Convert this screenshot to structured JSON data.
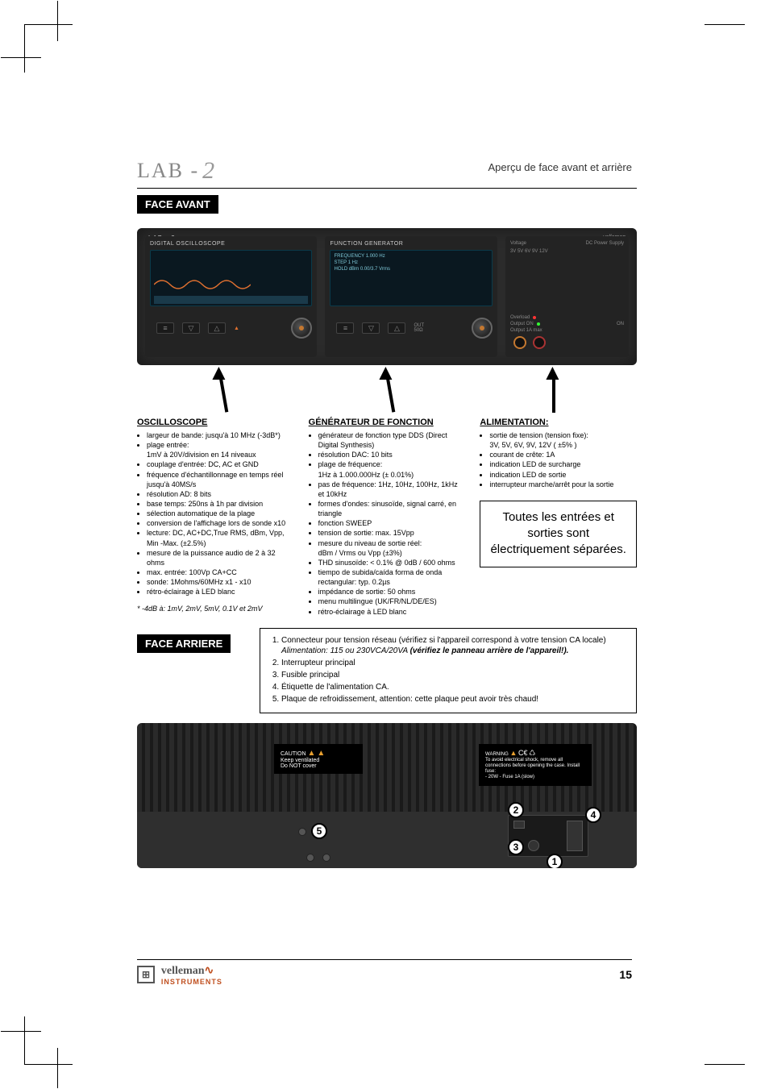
{
  "header_right": "Aperçu de face avant et arrière",
  "logo_text": "LAB - ",
  "logo_two": "2",
  "badge_front": "FACE AVANT",
  "badge_rear": "FACE ARRIERE",
  "device": {
    "model": "LAB - 2",
    "brand": "velleman",
    "osc_label": "DIGITAL OSCILLOSCOPE",
    "fg_label": "FUNCTION GENERATOR",
    "fg_screen": {
      "l1": "FREQUENCY    1.000 Hz",
      "l2": "STEP              1 Hz",
      "l3": "HOLD dBm    0.00/3.7 Vrms"
    },
    "power": {
      "voltage_label": "Voltage",
      "dc_label": "DC Power Supply",
      "overload": "Overload",
      "output_on": "Output ON",
      "output_jack": "Output 1A max"
    }
  },
  "osc": {
    "title": "OSCILLOSCOPE",
    "items": [
      "largeur de bande: jusqu'à 10 MHz (-3dB*)",
      "plage entrée:\n1mV à 20V/division en 14 niveaux",
      "couplage d'entrée: DC, AC et GND",
      "fréquence d'échantillonnage en temps réel jusqu'à 40MS/s",
      "résolution AD: 8 bits",
      "base temps: 250ns à 1h par division",
      "sélection automatique de la plage",
      "conversion de l'affichage lors de sonde x10",
      "lecture: DC, AC+DC,True RMS, dBm, Vpp, Min -Max. (±2.5%)",
      "mesure de la puissance audio de 2 à 32 ohms",
      "max. entrée: 100Vp CA+CC",
      "sonde: 1Mohms/60MHz x1 - x10",
      "rétro-éclairage à LED blanc"
    ],
    "footnote": "* -4dB à: 1mV, 2mV, 5mV, 0.1V et 2mV"
  },
  "fg": {
    "title": "GÉNÉRATEUR DE FONCTION",
    "items": [
      "générateur de fonction type DDS (Direct Digital Synthesis)",
      "résolution DAC: 10 bits",
      "plage de fréquence:\n1Hz à 1.000.000Hz (± 0.01%)",
      "pas de fréquence: 1Hz, 10Hz, 100Hz, 1kHz et 10kHz",
      "formes d'ondes: sinusoïde, signal carré, en triangle",
      "fonction SWEEP",
      "tension de sortie: max. 15Vpp",
      "mesure du niveau de sortie réel:\ndBm / Vrms ou Vpp (±3%)",
      "THD sinusoïde: < 0.1% @ 0dB / 600 ohms",
      "tiempo de subida/caída forma de onda rectangular: typ. 0.2µs",
      "impédance de sortie: 50 ohms",
      "menu multilingue (UK/FR/NL/DE/ES)",
      "rétro-éclairage à LED blanc"
    ]
  },
  "power": {
    "title": "ALIMENTATION:",
    "items": [
      "sortie de tension (tension fixe):\n3V, 5V, 6V, 9V, 12V ( ±5% )",
      "courant de crête: 1A",
      "indication LED de surcharge",
      "indication LED de sortie",
      "interrupteur marche/arrêt pour la sortie"
    ]
  },
  "callout": "Toutes les entrées et sorties sont électriquement séparées.",
  "rear": {
    "items": [
      {
        "n": "1",
        "text": "Connecteur pour tension réseau (vérifiez si l'appareil correspond à votre tension CA locale)",
        "sub": "Alimentation: 115 ou 230VCA/20VA ",
        "sub_bold": "(vérifiez le panneau arrière de l'appareil!)."
      },
      {
        "n": "2",
        "text": "Interrupteur principal"
      },
      {
        "n": "3",
        "text": "Fusible principal"
      },
      {
        "n": "4",
        "text": "Étiquette de l'alimentation CA."
      },
      {
        "n": "5",
        "text": "Plaque de refroidissement, attention: cette plaque peut avoir très chaud!"
      }
    ],
    "caution_title": "CAUTION",
    "caution_text": "Keep ventilated\nDo NOT cover",
    "warning_title": "WARNING",
    "warning_text": "To avoid electrical shock, remove all connections before opening the case. Install fuse:",
    "warning_fuse": "- 20W - Fuse 1A (slow)"
  },
  "footer": {
    "brand_top": "velleman",
    "brand_bottom": "INSTRUMENTS",
    "page": "15"
  },
  "colors": {
    "badge_bg": "#000000",
    "badge_fg": "#ffffff",
    "device_bg": "#2b2b2b",
    "screen_bg": "#0a1820",
    "screen_fg": "#7fc8d8",
    "knob_accent": "#c47830",
    "warn_tri": "#e8a030",
    "brand_accent": "#c05020"
  }
}
